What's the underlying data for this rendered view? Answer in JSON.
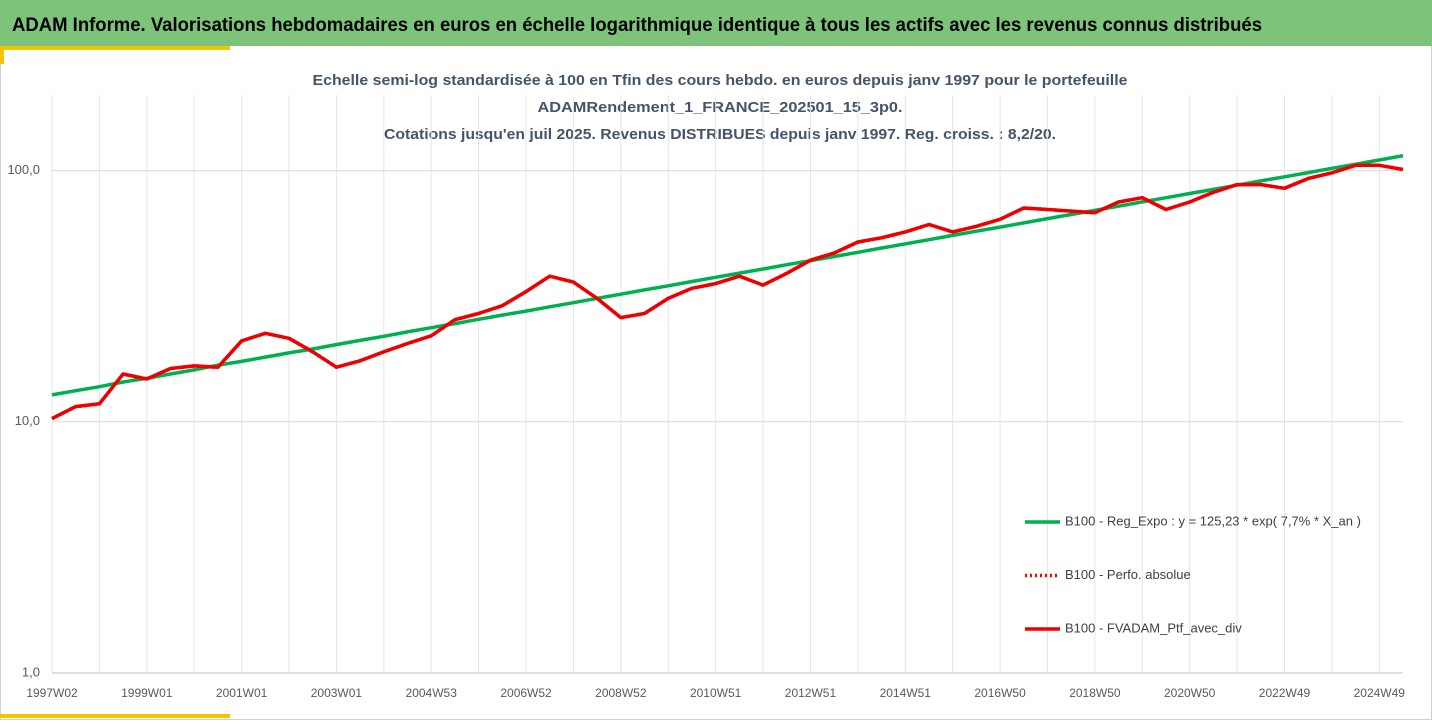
{
  "header": {
    "title": "ADAM Informe. Valorisations hebdomadaires en euros en échelle logarithmique identique à tous les actifs avec les revenus connus distribués"
  },
  "chart_data": {
    "type": "line",
    "title": [
      "Echelle semi-log standardisée à 100 en Tfin des cours hebdo.  en euros depuis janv 1997 pour le portefeuille",
      "ADAMRendement_1_FRANCE_202501_15_3p0.",
      "Cotations jusqu'en juil 2025. Revenus DISTRIBUES depuis janv 1997. Reg. croiss. : 8,2/20."
    ],
    "categories": [
      "1997W02",
      null,
      null,
      null,
      "1999W01",
      null,
      null,
      null,
      "2001W01",
      null,
      null,
      null,
      "2003W01",
      null,
      null,
      null,
      "2004W53",
      null,
      null,
      null,
      "2006W52",
      null,
      null,
      null,
      "2008W52",
      null,
      null,
      null,
      "2010W51",
      null,
      null,
      null,
      "2012W51",
      null,
      null,
      null,
      "2014W51",
      null,
      null,
      null,
      "2016W50",
      null,
      null,
      null,
      "2018W50",
      null,
      null,
      null,
      "2020W50",
      null,
      null,
      null,
      "2022W49",
      null,
      null,
      null,
      "2024W49",
      null
    ],
    "log_scale": true,
    "grid": true,
    "legend": "right",
    "ylim": [
      1,
      200
    ],
    "yticks": [
      {
        "value": 1,
        "label": "1,0"
      },
      {
        "value": 10,
        "label": "10,0"
      },
      {
        "value": 100,
        "label": "100,0"
      }
    ],
    "series": [
      {
        "name": "B100 - Reg_Expo : y = 125,23 * exp( 7,7% *  X_an )",
        "color": "#00b050",
        "style": "solid",
        "values": [
          12.8,
          13.3,
          13.8,
          14.4,
          14.9,
          15.5,
          16.1,
          16.8,
          17.4,
          18.1,
          18.8,
          19.5,
          20.3,
          21.1,
          21.9,
          22.8,
          23.7,
          24.6,
          25.6,
          26.6,
          27.6,
          28.7,
          29.8,
          31.0,
          32.2,
          33.5,
          34.8,
          36.2,
          37.6,
          39.1,
          40.6,
          42.2,
          43.8,
          45.5,
          47.3,
          49.2,
          51.1,
          53.1,
          55.2,
          57.4,
          59.6,
          61.9,
          64.4,
          66.9,
          69.5,
          72.2,
          75.1,
          78.0,
          81.1,
          84.2,
          87.5,
          91.0,
          94.5,
          98.2,
          102.1,
          106.1,
          110.2,
          114.6
        ]
      },
      {
        "name": "B100 - Perfo. absolue",
        "color": "#ff0000",
        "style": "dotted",
        "values": [
          10.3,
          11.5,
          11.8,
          15.5,
          14.8,
          16.3,
          16.7,
          16.5,
          21,
          22.5,
          21.5,
          19,
          16.5,
          17.5,
          19,
          20.5,
          22,
          25.5,
          27,
          29,
          33,
          38,
          36,
          31,
          26,
          27,
          31,
          34,
          35.5,
          38,
          35,
          39,
          44,
          47,
          52,
          54,
          57,
          61,
          57,
          60,
          64,
          71,
          70,
          69,
          68,
          75,
          78,
          70,
          75,
          82,
          88,
          88,
          85,
          93,
          98,
          105,
          105,
          101
        ]
      },
      {
        "name": "B100 - FVADAM_Ptf_avec_div",
        "color": "#ee0000",
        "style": "solid",
        "values": [
          10.3,
          11.5,
          11.8,
          15.5,
          14.8,
          16.3,
          16.7,
          16.5,
          21,
          22.5,
          21.5,
          19,
          16.5,
          17.5,
          19,
          20.5,
          22,
          25.5,
          27,
          29,
          33,
          38,
          36,
          31,
          26,
          27,
          31,
          34,
          35.5,
          38,
          35,
          39,
          44,
          47,
          52,
          54,
          57,
          61,
          57,
          60,
          64,
          71,
          70,
          69,
          68,
          75,
          78,
          70,
          75,
          82,
          88,
          88,
          85,
          93,
          98,
          105,
          105,
          101
        ]
      }
    ]
  }
}
